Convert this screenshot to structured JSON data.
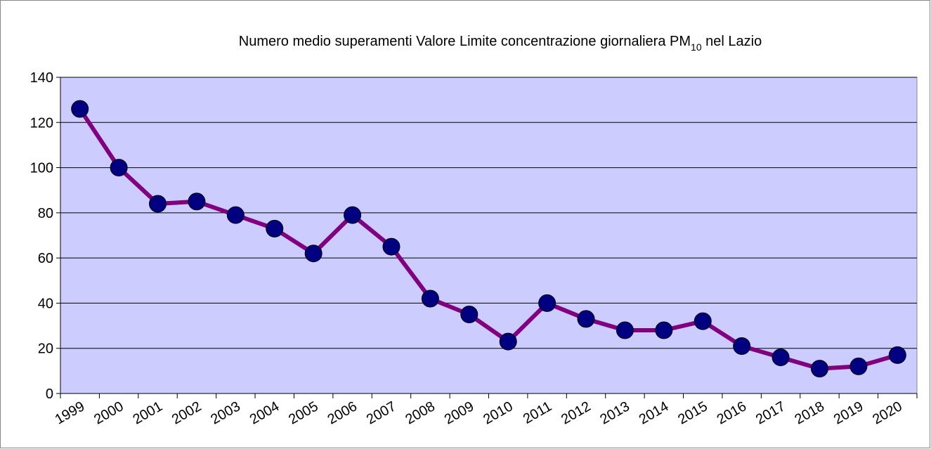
{
  "chart_data": {
    "type": "line",
    "title": {
      "text": "Numero medio superamenti Valore Limite concentrazione giornaliera PM",
      "subscript": "10",
      "suffix": " nel Lazio"
    },
    "categories": [
      "1999",
      "2000",
      "2001",
      "2002",
      "2003",
      "2004",
      "2005",
      "2006",
      "2007",
      "2008",
      "2009",
      "2010",
      "2011",
      "2012",
      "2013",
      "2014",
      "2015",
      "2016",
      "2017",
      "2018",
      "2019",
      "2020"
    ],
    "series": [
      {
        "color": "#800080",
        "marker_color": "#000080",
        "values": [
          126,
          100,
          84,
          85,
          79,
          73,
          62,
          79,
          65,
          42,
          35,
          23,
          40,
          33,
          28,
          28,
          32,
          21,
          16,
          11,
          12,
          17
        ]
      }
    ],
    "ylim": [
      0,
      140
    ],
    "yticks": [
      0,
      20,
      40,
      60,
      80,
      100,
      120,
      140
    ],
    "grid": true,
    "plot_background": "#ccccff"
  }
}
